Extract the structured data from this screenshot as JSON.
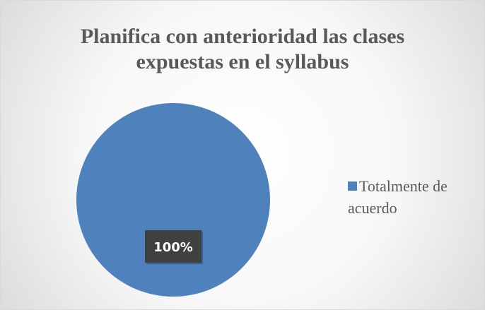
{
  "chart_data": {
    "type": "pie",
    "title": "Planifica con anterioridad las clases expuestas en el syllabus",
    "categories": [
      "Totalmente de acuerdo"
    ],
    "values": [
      100
    ],
    "value_labels": [
      "100%"
    ],
    "colors": [
      "#4f81bd"
    ],
    "legend": "right"
  }
}
